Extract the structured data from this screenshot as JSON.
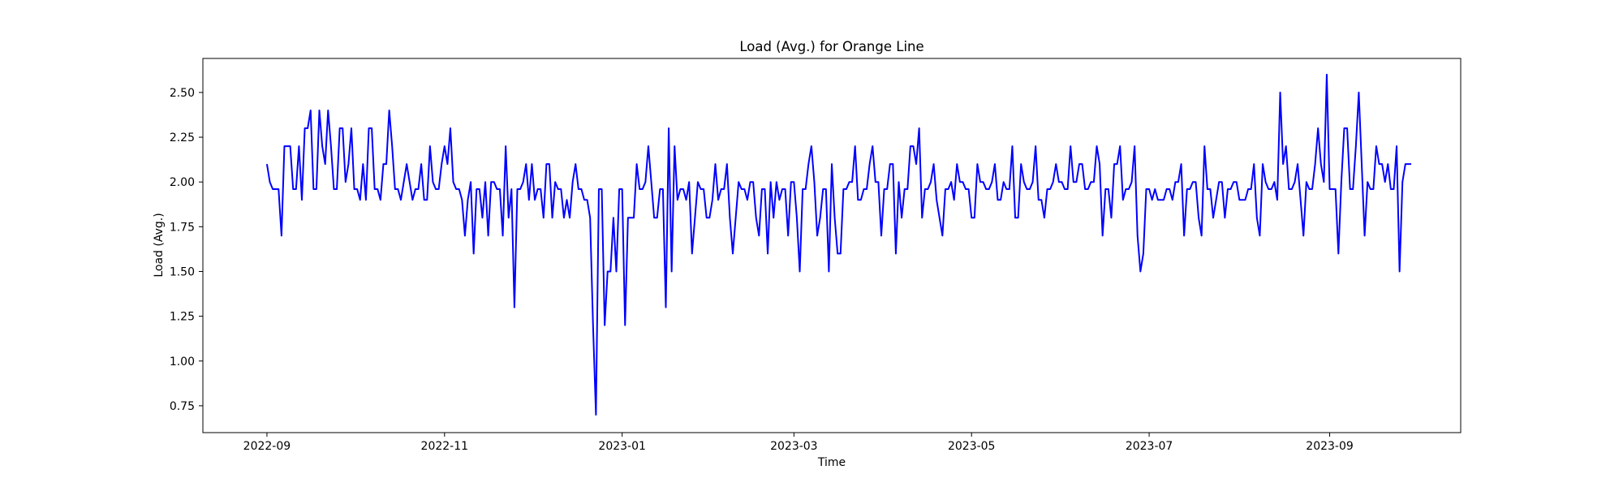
{
  "chart_data": {
    "type": "line",
    "title": "Load (Avg.) for Orange Line",
    "xlabel": "Time",
    "ylabel": "Load (Avg.)",
    "x_ticks": [
      "2022-09",
      "2022-11",
      "2023-01",
      "2023-03",
      "2023-05",
      "2023-07",
      "2023-09"
    ],
    "y_ticks": [
      "0.75",
      "1.00",
      "1.25",
      "1.50",
      "1.75",
      "2.00",
      "2.25",
      "2.50"
    ],
    "xlim": [
      "2022-08-10",
      "2023-10-16"
    ],
    "ylim": [
      0.6,
      2.69
    ],
    "grid": false,
    "series": [
      {
        "color": "#0000ff",
        "x": [
          "2022-09-01",
          "2022-09-02",
          "2022-09-03",
          "2022-09-04",
          "2022-09-05",
          "2022-09-06",
          "2022-09-07",
          "2022-09-08",
          "2022-09-09",
          "2022-09-10",
          "2022-09-11",
          "2022-09-12",
          "2022-09-13",
          "2022-09-14",
          "2022-09-15",
          "2022-09-16",
          "2022-09-17",
          "2022-09-18",
          "2022-09-19",
          "2022-09-20",
          "2022-09-21",
          "2022-09-22",
          "2022-09-23",
          "2022-09-24",
          "2022-09-25",
          "2022-09-26",
          "2022-09-27",
          "2022-09-28",
          "2022-09-29",
          "2022-09-30",
          "2022-10-01",
          "2022-10-02",
          "2022-10-03",
          "2022-10-04",
          "2022-10-05",
          "2022-10-06",
          "2022-10-07",
          "2022-10-08",
          "2022-10-09",
          "2022-10-10",
          "2022-10-11",
          "2022-10-12",
          "2022-10-13",
          "2022-10-14",
          "2022-10-15",
          "2022-10-16",
          "2022-10-17",
          "2022-10-18",
          "2022-10-19",
          "2022-10-20",
          "2022-10-21",
          "2022-10-22",
          "2022-10-23",
          "2022-10-24",
          "2022-10-25",
          "2022-10-26",
          "2022-10-27",
          "2022-10-28",
          "2022-10-29",
          "2022-10-30",
          "2022-10-31",
          "2022-11-01",
          "2022-11-02",
          "2022-11-03",
          "2022-11-04",
          "2022-11-05",
          "2022-11-06",
          "2022-11-07",
          "2022-11-08",
          "2022-11-09",
          "2022-11-10",
          "2022-11-11",
          "2022-11-12",
          "2022-11-13",
          "2022-11-14",
          "2022-11-15",
          "2022-11-16",
          "2022-11-17",
          "2022-11-18",
          "2022-11-19",
          "2022-11-20",
          "2022-11-21",
          "2022-11-22",
          "2022-11-23",
          "2022-11-24",
          "2022-11-25",
          "2022-11-26",
          "2022-11-27",
          "2022-11-28",
          "2022-11-29",
          "2022-11-30",
          "2022-12-01",
          "2022-12-02",
          "2022-12-03",
          "2022-12-04",
          "2022-12-05",
          "2022-12-06",
          "2022-12-07",
          "2022-12-08",
          "2022-12-09",
          "2022-12-10",
          "2022-12-11",
          "2022-12-12",
          "2022-12-13",
          "2022-12-14",
          "2022-12-15",
          "2022-12-16",
          "2022-12-17",
          "2022-12-18",
          "2022-12-19",
          "2022-12-20",
          "2022-12-21",
          "2022-12-22",
          "2022-12-23",
          "2022-12-24",
          "2022-12-25",
          "2022-12-26",
          "2022-12-27",
          "2022-12-28",
          "2022-12-29",
          "2022-12-30",
          "2022-12-31",
          "2023-01-01",
          "2023-01-02",
          "2023-01-03",
          "2023-01-04",
          "2023-01-05",
          "2023-01-06",
          "2023-01-07",
          "2023-01-08",
          "2023-01-09",
          "2023-01-10",
          "2023-01-11",
          "2023-01-12",
          "2023-01-13",
          "2023-01-14",
          "2023-01-15",
          "2023-01-16",
          "2023-01-17",
          "2023-01-18",
          "2023-01-19",
          "2023-01-20",
          "2023-01-21",
          "2023-01-22",
          "2023-01-23",
          "2023-01-24",
          "2023-01-25",
          "2023-01-26",
          "2023-01-27",
          "2023-01-28",
          "2023-01-29",
          "2023-01-30",
          "2023-01-31",
          "2023-02-01",
          "2023-02-02",
          "2023-02-03",
          "2023-02-04",
          "2023-02-05",
          "2023-02-06",
          "2023-02-07",
          "2023-02-08",
          "2023-02-09",
          "2023-02-10",
          "2023-02-11",
          "2023-02-12",
          "2023-02-13",
          "2023-02-14",
          "2023-02-15",
          "2023-02-16",
          "2023-02-17",
          "2023-02-18",
          "2023-02-19",
          "2023-02-20",
          "2023-02-21",
          "2023-02-22",
          "2023-02-23",
          "2023-02-24",
          "2023-02-25",
          "2023-02-26",
          "2023-02-27",
          "2023-02-28",
          "2023-03-01",
          "2023-03-02",
          "2023-03-03",
          "2023-03-04",
          "2023-03-05",
          "2023-03-06",
          "2023-03-07",
          "2023-03-08",
          "2023-03-09",
          "2023-03-10",
          "2023-03-11",
          "2023-03-12",
          "2023-03-13",
          "2023-03-14",
          "2023-03-15",
          "2023-03-16",
          "2023-03-17",
          "2023-03-18",
          "2023-03-19",
          "2023-03-20",
          "2023-03-21",
          "2023-03-22",
          "2023-03-23",
          "2023-03-24",
          "2023-03-25",
          "2023-03-26",
          "2023-03-27",
          "2023-03-28",
          "2023-03-29",
          "2023-03-30",
          "2023-03-31",
          "2023-04-01",
          "2023-04-02",
          "2023-04-03",
          "2023-04-04",
          "2023-04-05",
          "2023-04-06",
          "2023-04-07",
          "2023-04-08",
          "2023-04-09",
          "2023-04-10",
          "2023-04-11",
          "2023-04-12",
          "2023-04-13",
          "2023-04-14",
          "2023-04-15",
          "2023-04-16",
          "2023-04-17",
          "2023-04-18",
          "2023-04-19",
          "2023-04-20",
          "2023-04-21",
          "2023-04-22",
          "2023-04-23",
          "2023-04-24",
          "2023-04-25",
          "2023-04-26",
          "2023-04-27",
          "2023-04-28",
          "2023-04-29",
          "2023-04-30",
          "2023-05-01",
          "2023-05-02",
          "2023-05-03",
          "2023-05-04",
          "2023-05-05",
          "2023-05-06",
          "2023-05-07",
          "2023-05-08",
          "2023-05-09",
          "2023-05-10",
          "2023-05-11",
          "2023-05-12",
          "2023-05-13",
          "2023-05-14",
          "2023-05-15",
          "2023-05-16",
          "2023-05-17",
          "2023-05-18",
          "2023-05-19",
          "2023-05-20",
          "2023-05-21",
          "2023-05-22",
          "2023-05-23",
          "2023-05-24",
          "2023-05-25",
          "2023-05-26",
          "2023-05-27",
          "2023-05-28",
          "2023-05-29",
          "2023-05-30",
          "2023-05-31",
          "2023-06-01",
          "2023-06-02",
          "2023-06-03",
          "2023-06-04",
          "2023-06-05",
          "2023-06-06",
          "2023-06-07",
          "2023-06-08",
          "2023-06-09",
          "2023-06-10",
          "2023-06-11",
          "2023-06-12",
          "2023-06-13",
          "2023-06-14",
          "2023-06-15",
          "2023-06-16",
          "2023-06-17",
          "2023-06-18",
          "2023-06-19",
          "2023-06-20",
          "2023-06-21",
          "2023-06-22",
          "2023-06-23",
          "2023-06-24",
          "2023-06-25",
          "2023-06-26",
          "2023-06-27",
          "2023-06-28",
          "2023-06-29",
          "2023-06-30",
          "2023-07-01",
          "2023-07-02",
          "2023-07-03",
          "2023-07-04",
          "2023-07-05",
          "2023-07-06",
          "2023-07-07",
          "2023-07-08",
          "2023-07-09",
          "2023-07-10",
          "2023-07-11",
          "2023-07-12",
          "2023-07-13",
          "2023-07-14",
          "2023-07-15",
          "2023-07-16",
          "2023-07-17",
          "2023-07-18",
          "2023-07-19",
          "2023-07-20",
          "2023-07-21",
          "2023-07-22",
          "2023-07-23",
          "2023-07-24",
          "2023-07-25",
          "2023-07-26",
          "2023-07-27",
          "2023-07-28",
          "2023-07-29",
          "2023-07-30",
          "2023-07-31",
          "2023-08-01",
          "2023-08-02",
          "2023-08-03",
          "2023-08-04",
          "2023-08-05",
          "2023-08-06",
          "2023-08-07",
          "2023-08-08",
          "2023-08-09",
          "2023-08-10",
          "2023-08-11",
          "2023-08-12",
          "2023-08-13",
          "2023-08-14",
          "2023-08-15",
          "2023-08-16",
          "2023-08-17",
          "2023-08-18",
          "2023-08-19",
          "2023-08-20",
          "2023-08-21",
          "2023-08-22",
          "2023-08-23",
          "2023-08-24",
          "2023-08-25",
          "2023-08-26",
          "2023-08-27",
          "2023-08-28",
          "2023-08-29",
          "2023-08-30",
          "2023-08-31",
          "2023-09-01",
          "2023-09-02",
          "2023-09-03",
          "2023-09-04",
          "2023-09-05",
          "2023-09-06",
          "2023-09-07",
          "2023-09-08",
          "2023-09-09",
          "2023-09-10",
          "2023-09-11",
          "2023-09-12",
          "2023-09-13",
          "2023-09-14",
          "2023-09-15",
          "2023-09-16",
          "2023-09-17",
          "2023-09-18",
          "2023-09-19",
          "2023-09-20",
          "2023-09-21",
          "2023-09-22",
          "2023-09-23",
          "2023-09-24",
          "2023-09-25",
          "2023-09-26",
          "2023-09-27",
          "2023-09-28",
          "2023-09-29"
        ],
        "y": [
          2.1,
          2.0,
          1.96,
          1.96,
          1.96,
          1.7,
          2.2,
          2.2,
          2.2,
          1.96,
          1.96,
          2.2,
          1.9,
          2.3,
          2.3,
          2.4,
          1.96,
          1.96,
          2.4,
          2.2,
          2.1,
          2.4,
          2.2,
          1.96,
          1.96,
          2.3,
          2.3,
          2.0,
          2.1,
          2.3,
          1.96,
          1.96,
          1.9,
          2.1,
          1.9,
          2.3,
          2.3,
          1.96,
          1.96,
          1.9,
          2.1,
          2.1,
          2.4,
          2.2,
          1.96,
          1.96,
          1.9,
          2.0,
          2.1,
          2.0,
          1.9,
          1.96,
          1.96,
          2.1,
          1.9,
          1.9,
          2.2,
          2.0,
          1.96,
          1.96,
          2.1,
          2.2,
          2.1,
          2.3,
          2.0,
          1.96,
          1.96,
          1.9,
          1.7,
          1.9,
          2.0,
          1.6,
          1.96,
          1.96,
          1.8,
          2.0,
          1.7,
          2.0,
          2.0,
          1.96,
          1.96,
          1.7,
          2.2,
          1.8,
          1.96,
          1.3,
          1.96,
          1.96,
          2.0,
          2.1,
          1.9,
          2.1,
          1.9,
          1.96,
          1.96,
          1.8,
          2.1,
          2.1,
          1.8,
          2.0,
          1.96,
          1.96,
          1.8,
          1.9,
          1.8,
          2.0,
          2.1,
          1.96,
          1.96,
          1.9,
          1.9,
          1.8,
          1.2,
          0.7,
          1.96,
          1.96,
          1.2,
          1.5,
          1.5,
          1.8,
          1.5,
          1.96,
          1.96,
          1.2,
          1.8,
          1.8,
          1.8,
          2.1,
          1.96,
          1.96,
          2.0,
          2.2,
          2.0,
          1.8,
          1.8,
          1.96,
          1.96,
          1.3,
          2.3,
          1.5,
          2.2,
          1.9,
          1.96,
          1.96,
          1.9,
          2.0,
          1.6,
          1.8,
          2.0,
          1.96,
          1.96,
          1.8,
          1.8,
          1.9,
          2.1,
          1.9,
          1.96,
          1.96,
          2.1,
          1.8,
          1.6,
          1.8,
          2.0,
          1.96,
          1.96,
          1.9,
          2.0,
          2.0,
          1.8,
          1.7,
          1.96,
          1.96,
          1.6,
          2.0,
          1.8,
          2.0,
          1.9,
          1.96,
          1.96,
          1.7,
          2.0,
          2.0,
          1.8,
          1.5,
          1.96,
          1.96,
          2.1,
          2.2,
          2.0,
          1.7,
          1.8,
          1.96,
          1.96,
          1.5,
          2.1,
          1.8,
          1.6,
          1.6,
          1.96,
          1.96,
          2.0,
          2.0,
          2.2,
          1.9,
          1.9,
          1.96,
          1.96,
          2.1,
          2.2,
          2.0,
          2.0,
          1.7,
          1.96,
          1.96,
          2.1,
          2.1,
          1.6,
          2.0,
          1.8,
          1.96,
          1.96,
          2.2,
          2.2,
          2.1,
          2.3,
          1.8,
          1.96,
          1.96,
          2.0,
          2.1,
          1.9,
          1.8,
          1.7,
          1.96,
          1.96,
          2.0,
          1.9,
          2.1,
          2.0,
          2.0,
          1.96,
          1.96,
          1.8,
          1.8,
          2.1,
          2.0,
          2.0,
          1.96,
          1.96,
          2.0,
          2.1,
          1.9,
          1.9,
          2.0,
          1.96,
          1.96,
          2.2,
          1.8,
          1.8,
          2.1,
          2.0,
          1.96,
          1.96,
          2.0,
          2.2,
          1.9,
          1.9,
          1.8,
          1.96,
          1.96,
          2.0,
          2.1,
          2.0,
          2.0,
          1.96,
          1.96,
          2.2,
          2.0,
          2.0,
          2.1,
          2.1,
          1.96,
          1.96,
          2.0,
          2.0,
          2.2,
          2.1,
          1.7,
          1.96,
          1.96,
          1.8,
          2.1,
          2.1,
          2.2,
          1.9,
          1.96,
          1.96,
          2.0,
          2.2,
          1.7,
          1.5,
          1.6,
          1.96,
          1.96,
          1.9,
          1.96,
          1.9,
          1.9,
          1.9,
          1.96,
          1.96,
          1.9,
          2.0,
          2.0,
          2.1,
          1.7,
          1.96,
          1.96,
          2.0,
          2.0,
          1.8,
          1.7,
          2.2,
          1.96,
          1.96,
          1.8,
          1.9,
          2.0,
          2.0,
          1.8,
          1.96,
          1.96,
          2.0,
          2.0,
          1.9,
          1.9,
          1.9,
          1.96,
          1.96,
          2.1,
          1.8,
          1.7,
          2.1,
          2.0,
          1.96,
          1.96,
          2.0,
          1.9,
          2.5,
          2.1,
          2.2,
          1.96,
          1.96,
          2.0,
          2.1,
          1.9,
          1.7,
          2.0,
          1.96,
          1.96,
          2.1,
          2.3,
          2.1,
          2.0,
          2.6,
          1.96,
          1.96,
          1.96,
          1.6,
          2.0,
          2.3,
          2.3,
          1.96,
          1.96,
          2.2,
          2.5,
          2.1,
          1.7,
          2.0,
          1.96,
          1.96,
          2.2,
          2.1,
          2.1,
          2.0,
          2.1,
          1.96,
          1.96,
          2.2,
          1.5,
          2.0,
          2.1,
          2.1,
          2.1
        ]
      }
    ]
  }
}
